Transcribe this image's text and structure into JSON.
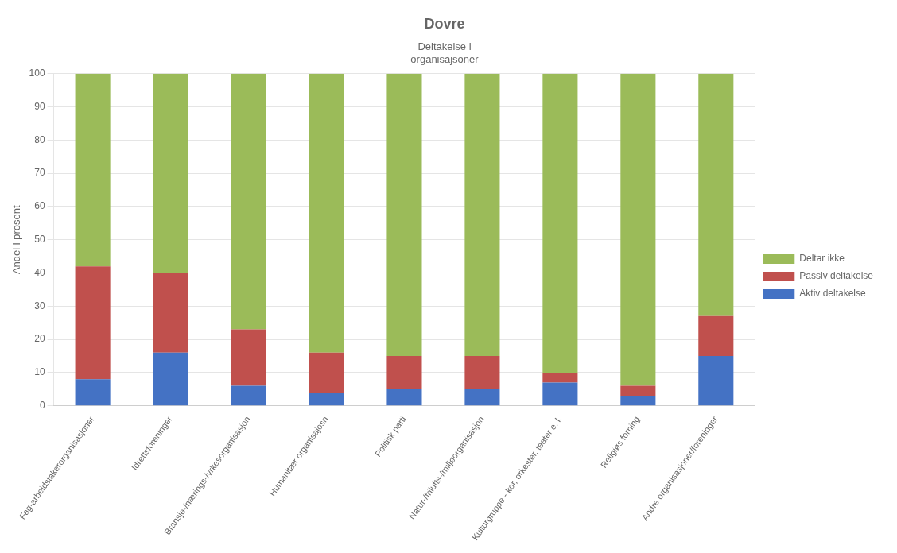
{
  "chart_data": {
    "type": "bar",
    "title": "Dovre",
    "subtitle": "Deltakelse i\norganisajsoner",
    "y_label": "Andel i prosent",
    "categories": [
      "Fag-arbeidstakerorganisasjoner",
      "Idrettsforeninger",
      "Bransje-/nærings-/yrkesorganisasjon",
      "Humanitær organisajosn",
      "Politisk parti",
      "Natur-/frilufts-/miljøorganisasjon",
      "Kulturgruppe - kor, orkester, teater e. l.",
      "Religiøs forning",
      "Andre organisasjoner/foreninger"
    ],
    "series": [
      {
        "name": "Aktiv deltakelse",
        "color": "#4472C4",
        "values": [
          8,
          16,
          6,
          4,
          5,
          5,
          7,
          3,
          15
        ]
      },
      {
        "name": "Passiv deltakelse",
        "color": "#C0504D",
        "values": [
          34,
          24,
          17,
          12,
          10,
          10,
          3,
          3,
          12
        ]
      },
      {
        "name": "Deltar ikke",
        "color": "#9BBB59",
        "values": [
          58,
          60,
          77,
          84,
          85,
          85,
          90,
          94,
          73
        ]
      }
    ],
    "stacked": true,
    "ylim": [
      0,
      100
    ],
    "yticks": [
      0,
      10,
      20,
      30,
      40,
      50,
      60,
      70,
      80,
      90,
      100
    ],
    "grid": true,
    "legend": "right"
  }
}
